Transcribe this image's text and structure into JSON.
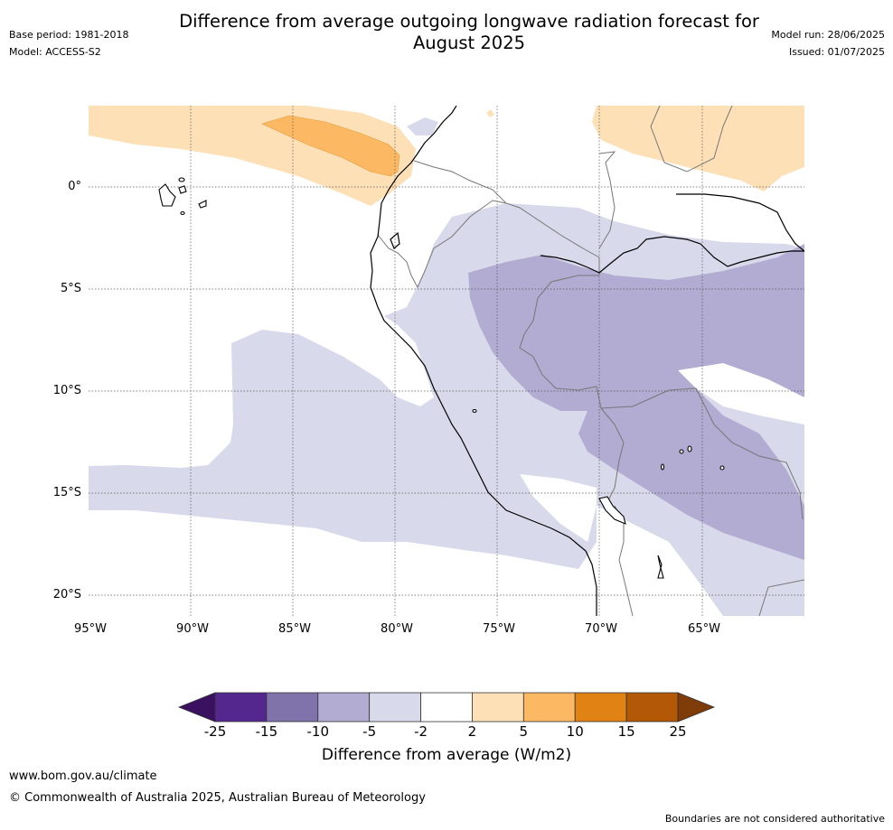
{
  "title": "Difference from average outgoing longwave radiation forecast for August 2025",
  "title_line1": "Difference from average outgoing longwave radiation forecast for",
  "title_line2": "August 2025",
  "meta_left": {
    "base_period": "Base period: 1981-2018",
    "model": "Model: ACCESS-S2"
  },
  "meta_right": {
    "model_run": "Model run: 28/06/2025",
    "issued": "Issued: 01/07/2025"
  },
  "lon_labels": [
    "95°W",
    "90°W",
    "85°W",
    "80°W",
    "75°W",
    "70°W",
    "65°W"
  ],
  "lat_labels": [
    "0°",
    "5°S",
    "10°S",
    "15°S",
    "20°S"
  ],
  "colorbar": {
    "ticks": [
      "-25",
      "-15",
      "-10",
      "-5",
      "-2",
      "2",
      "5",
      "10",
      "15",
      "25"
    ],
    "colors": [
      "#3a1060",
      "#54278f",
      "#8073ac",
      "#b2abd2",
      "#d8daeb",
      "#ffffff",
      "#fee0b6",
      "#fdb863",
      "#e08214",
      "#b35806",
      "#7f3b08"
    ],
    "label": "Difference from average (W/m2)"
  },
  "palette": {
    "neg5": "#d8daeb",
    "neg10": "#b2abd2",
    "pos2": "#fee0b6",
    "pos5": "#fdb863"
  },
  "footer": {
    "url": "www.bom.gov.au/climate",
    "copyright": "© Commonwealth of Australia 2025, Australian Bureau of Meteorology",
    "disclaimer": "Boundaries are not considered authoritative"
  }
}
